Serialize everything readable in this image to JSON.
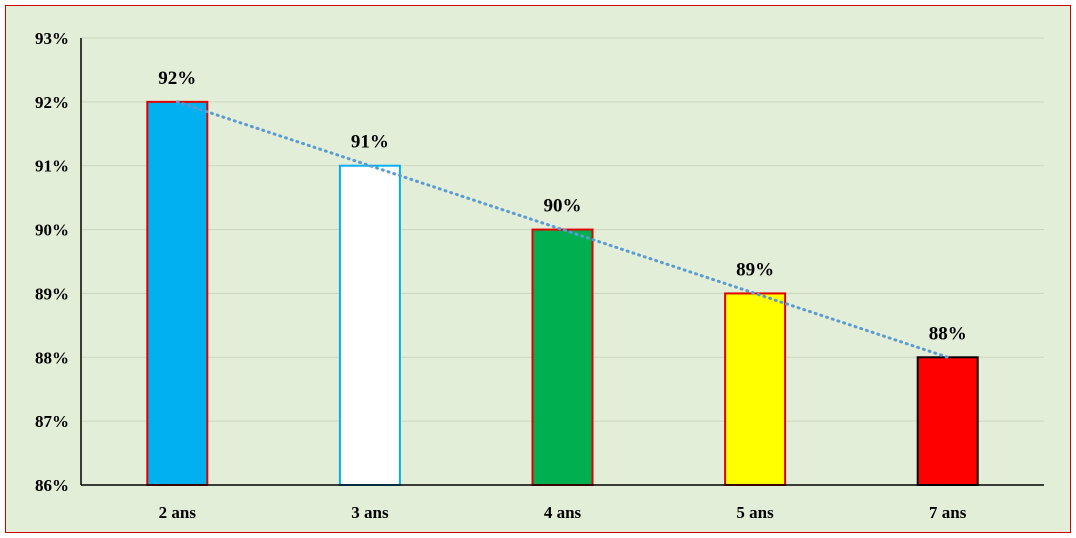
{
  "chart_data": {
    "type": "bar",
    "categories": [
      "2 ans",
      "3 ans",
      "4 ans",
      "5 ans",
      "7 ans"
    ],
    "values": [
      92,
      91,
      90,
      89,
      88
    ],
    "data_labels": [
      "92%",
      "91%",
      "90%",
      "89%",
      "88%"
    ],
    "y_ticks": [
      "86%",
      "87%",
      "88%",
      "89%",
      "90%",
      "91%",
      "92%",
      "93%"
    ],
    "ylim": [
      86,
      93
    ],
    "grid": true,
    "legend": "none",
    "trendline": {
      "type": "linear",
      "style": "dotted",
      "color": "#5b9bd5"
    },
    "bar_fills": [
      "#00b0f0",
      "#ffffff",
      "#00b050",
      "#ffff00",
      "#ff0000"
    ],
    "bar_borders": [
      "#e00000",
      "#00b0f0",
      "#e00000",
      "#e00000",
      "#000000"
    ],
    "colors": {
      "plot_background": "#e3eed8",
      "frame_border": "#d00000",
      "gridline": "#c9d6bd",
      "axis": "#000000"
    }
  }
}
